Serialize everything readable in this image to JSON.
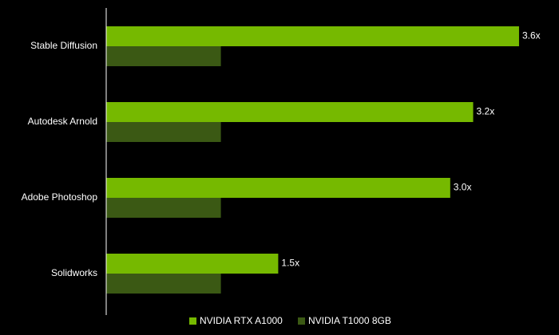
{
  "chart_data": {
    "type": "bar",
    "orientation": "horizontal",
    "categories": [
      "Stable Diffusion",
      "Autodesk Arnold",
      "Adobe Photoshop",
      "Solidworks"
    ],
    "series": [
      {
        "name": "NVIDIA RTX A1000",
        "color": "#76b900",
        "values": [
          3.6,
          3.2,
          3.0,
          1.5
        ],
        "value_labels": [
          "3.6x",
          "3.2x",
          "3.0x",
          "1.5x"
        ]
      },
      {
        "name": "NVIDIA T1000 8GB",
        "color": "#3b5914",
        "values": [
          1,
          1,
          1,
          1
        ]
      }
    ],
    "xlim": [
      0,
      4
    ],
    "legend": "bottom"
  }
}
